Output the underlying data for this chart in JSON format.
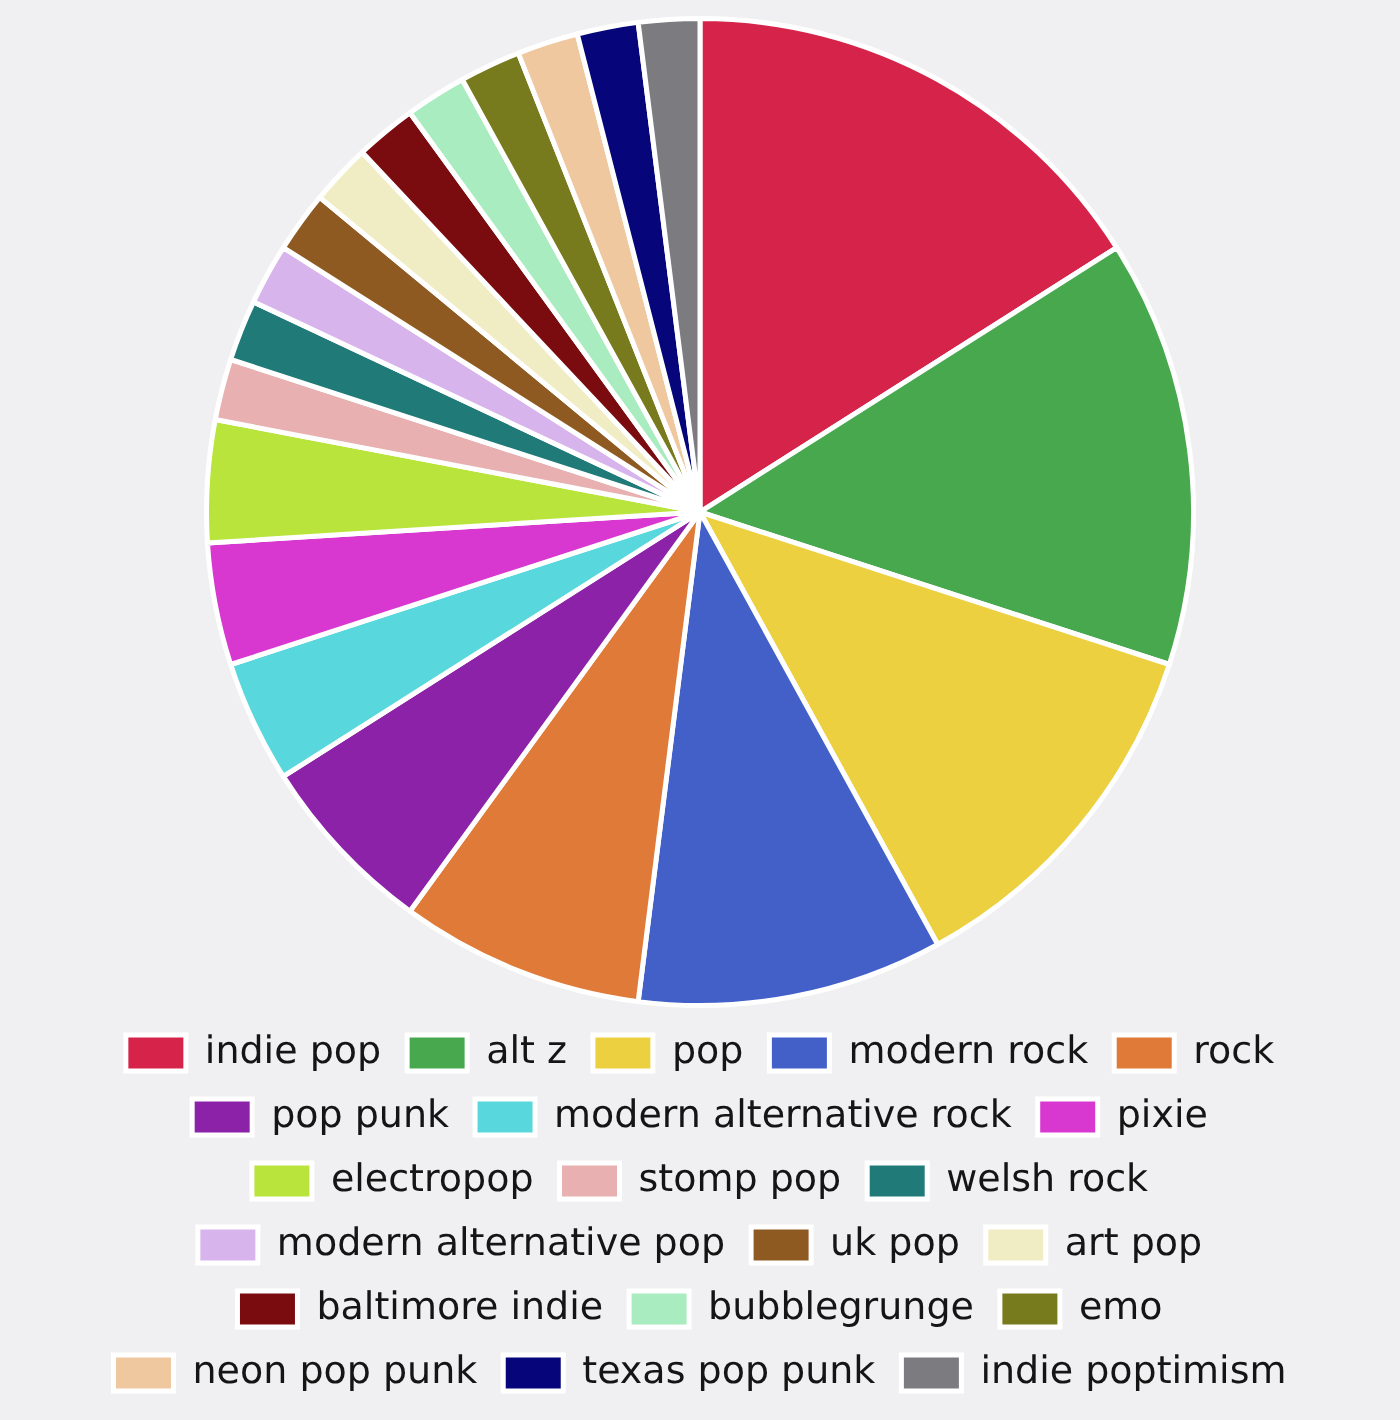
{
  "chart_data": {
    "type": "pie",
    "legend": "bottom",
    "categories": [
      "indie pop",
      "alt z",
      "pop",
      "modern rock",
      "rock",
      "pop punk",
      "modern alternative rock",
      "pixie",
      "electropop",
      "stomp pop",
      "welsh rock",
      "modern alternative pop",
      "uk pop",
      "art pop",
      "baltimore indie",
      "bubblegrunge",
      "emo",
      "neon pop punk",
      "texas pop punk",
      "indie poptimism"
    ],
    "values": [
      16,
      14,
      12,
      10,
      8,
      6,
      4,
      4,
      4,
      2,
      2,
      2,
      2,
      2,
      2,
      2,
      2,
      2,
      2,
      2
    ],
    "colors": [
      "#d5234a",
      "#48a84e",
      "#ecd040",
      "#4260c8",
      "#e07a38",
      "#8c22a8",
      "#58d8dc",
      "#d838d0",
      "#b8e43c",
      "#e8b0b0",
      "#1f7a78",
      "#d8b4ec",
      "#8e5a22",
      "#f0ecc4",
      "#7a0c10",
      "#a8ecc0",
      "#787a1e",
      "#f0c8a0",
      "#06067a",
      "#7c7c80"
    ]
  }
}
